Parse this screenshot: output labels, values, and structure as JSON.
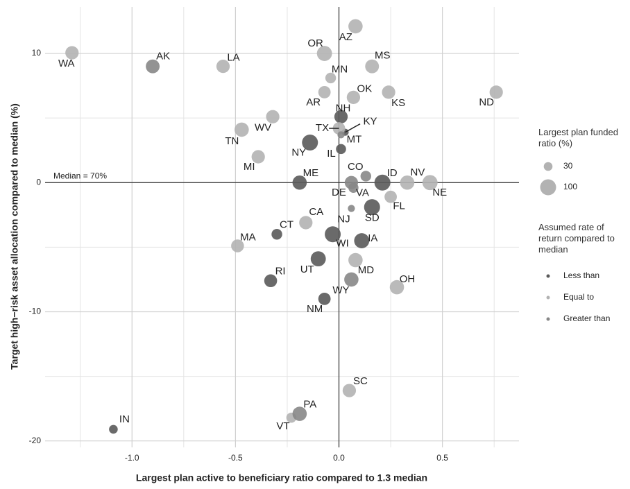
{
  "chart_data": {
    "type": "scatter",
    "xlabel": "Largest plan active to beneficiary ratio compared to 1.3 median",
    "ylabel": "Target high−risk asset allocation compared to median (%)",
    "annotation": "Median = 70%",
    "xlim": [
      -1.42,
      0.87
    ],
    "ylim": [
      -20.5,
      13.6
    ],
    "xticks": [
      {
        "value": -1,
        "label": "-1.0"
      },
      {
        "value": -0.5,
        "label": "-0.5"
      },
      {
        "value": 0,
        "label": "0.0"
      },
      0.5
    ],
    "yticks": [
      -20,
      -10,
      0,
      10
    ],
    "grid": true,
    "size_legend": {
      "title": "Largest plan funded ratio (%)",
      "sizes": [
        30,
        100
      ]
    },
    "color_legend_title": "Assumed rate of return compared to median",
    "series": [
      {
        "name": "Less than",
        "color": "#5a5a5a",
        "labels": [
          "NH",
          "KY",
          "NY",
          "IL",
          "ME",
          "ID",
          "SD",
          "CT",
          "WI",
          "IA",
          "UT",
          "RI",
          "NM",
          "IN"
        ],
        "x": [
          0.01,
          0.03,
          -0.14,
          0.01,
          -0.19,
          0.21,
          0.16,
          -0.3,
          -0.03,
          0.11,
          -0.1,
          -0.33,
          -0.07,
          -1.09
        ],
        "values": [
          5.1,
          3.9,
          3.1,
          2.6,
          0,
          0,
          -1.9,
          -4.0,
          -4.0,
          -4.5,
          -5.9,
          -7.6,
          -9.0,
          -19.1
        ],
        "sizes": [
          70,
          20,
          100,
          40,
          80,
          100,
          100,
          45,
          100,
          90,
          90,
          65,
          60,
          30
        ]
      },
      {
        "name": "Equal to",
        "color": "#b2b2b2",
        "labels": [
          "WA",
          "LA",
          "OR",
          "AZ",
          "MS",
          "MN",
          "OK",
          "AR",
          "KS",
          "ND",
          "TX",
          "WV",
          "TN",
          "MI",
          "NV",
          "NE",
          "FL",
          "CA",
          "MA",
          "MD",
          "OH",
          "SC",
          "VT"
        ],
        "x": [
          -1.29,
          -0.56,
          -0.07,
          0.08,
          0.16,
          -0.04,
          0.07,
          -0.07,
          0.24,
          0.76,
          0.0,
          -0.32,
          -0.47,
          -0.39,
          0.33,
          0.44,
          0.25,
          -0.16,
          -0.49,
          0.08,
          0.28,
          0.05,
          -0.23
        ],
        "values": [
          10.05,
          9.0,
          10.0,
          12.1,
          9.0,
          8.1,
          6.6,
          7.0,
          7.0,
          7.0,
          4.2,
          5.1,
          4.1,
          2.0,
          0,
          0,
          -1.1,
          -3.1,
          -4.9,
          -6.0,
          -8.1,
          -16.1,
          -18.2
        ],
        "sizes": [
          70,
          70,
          90,
          80,
          75,
          45,
          70,
          60,
          70,
          70,
          60,
          70,
          80,
          70,
          80,
          90,
          60,
          70,
          65,
          80,
          80,
          70,
          40
        ]
      },
      {
        "name": "Greater than",
        "color": "#878787",
        "labels": [
          "AK",
          "MT",
          "CO",
          "DE",
          "VA",
          "NJ",
          "WY",
          "PA"
        ],
        "x": [
          -0.9,
          0.01,
          0.13,
          0.06,
          0.07,
          0.06,
          0.06,
          -0.19
        ],
        "values": [
          9.0,
          3.7,
          0.5,
          0,
          -0.4,
          -2.0,
          -7.5,
          -17.9
        ],
        "sizes": [
          75,
          20,
          45,
          70,
          40,
          20,
          80,
          80
        ]
      }
    ]
  }
}
